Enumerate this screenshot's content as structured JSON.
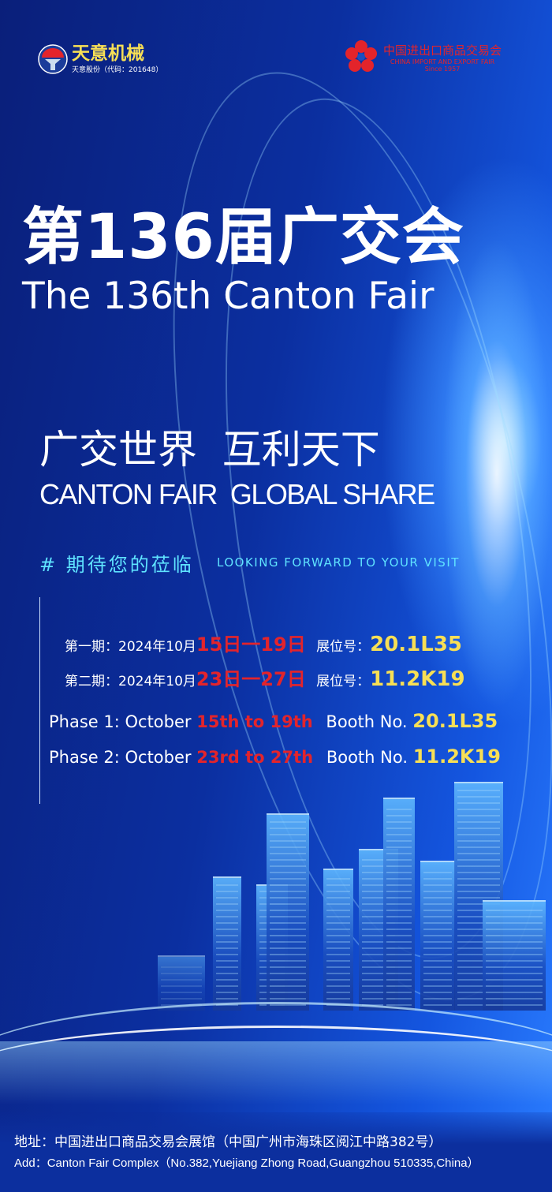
{
  "logos": {
    "tianyi": {
      "name": "天意机械",
      "sub": "天意股份（代码：201648）",
      "mark": "®"
    },
    "canton": {
      "cn": "中国进出口商品交易会",
      "en": "CHINA IMPORT AND EXPORT FAIR",
      "since": "Since 1957"
    }
  },
  "title": {
    "cn": "第136届广交会",
    "en": "The 136th Canton Fair"
  },
  "slogan": {
    "cn": "广交世界  互利天下",
    "en": "CANTON FAIR  GLOBAL SHARE"
  },
  "invite": {
    "cn": "# 期待您的莅临",
    "en": "LOOKING FORWARD TO YOUR VISIT"
  },
  "schedule_cn": [
    {
      "label": "第一期：2024年10月",
      "dates": "15日一19日",
      "booth_label": "展位号：",
      "booth": "20.1L35"
    },
    {
      "label": "第二期：2024年10月",
      "dates": "23日一27日",
      "booth_label": "展位号：",
      "booth": "11.2K19"
    }
  ],
  "schedule_en": [
    {
      "label": "Phase 1: October ",
      "dates": "15th to 19th",
      "booth_label": "Booth No. ",
      "booth": "20.1L35"
    },
    {
      "label": "Phase 2: October ",
      "dates": "23rd to 27th",
      "booth_label": "Booth No. ",
      "booth": "11.2K19"
    }
  ],
  "address": {
    "cn": "地址：中国进出口商品交易会展馆（中国广州市海珠区阅江中路382号）",
    "en": "Add：Canton Fair Complex（No.382,Yuejiang Zhong Road,Guangzhou 510335,China）"
  },
  "colors": {
    "accent_red": "#e3242b",
    "accent_yellow": "#f7df55",
    "invite_cyan": "#5fe3ff"
  }
}
